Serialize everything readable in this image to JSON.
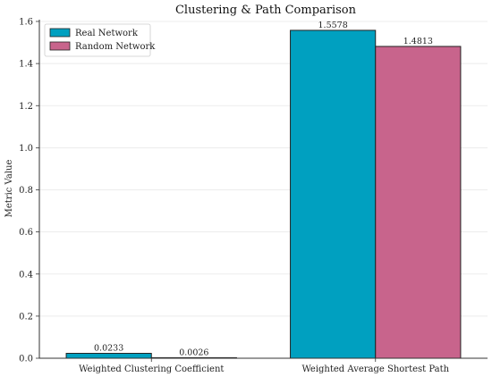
{
  "chart_data": {
    "type": "bar",
    "title": "Clustering & Path Comparison",
    "xlabel": "",
    "ylabel": "Metric Value",
    "categories": [
      "Weighted Clustering Coefficient",
      "Weighted Average Shortest Path"
    ],
    "series": [
      {
        "name": "Real Network",
        "values": [
          0.0233,
          1.5578
        ],
        "labels": [
          "0.0233",
          "1.5578"
        ],
        "color": "#00a0c0"
      },
      {
        "name": "Random Network",
        "values": [
          0.0026,
          1.4813
        ],
        "labels": [
          "0.0026",
          "1.4813"
        ],
        "color": "#c8648c"
      }
    ],
    "ylim": [
      0,
      1.6
    ],
    "yticks": [
      "0.0",
      "0.2",
      "0.4",
      "0.6",
      "0.8",
      "1.0",
      "1.2",
      "1.4",
      "1.6"
    ],
    "grid": "y",
    "legend": "top-left"
  }
}
